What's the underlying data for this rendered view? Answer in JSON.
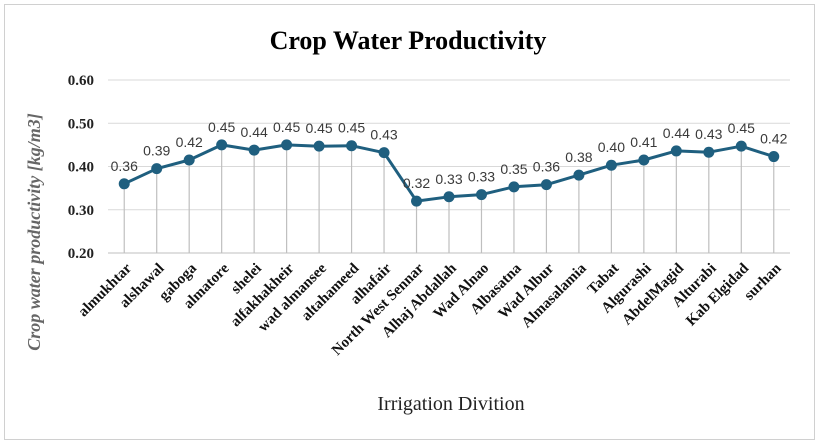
{
  "chart_data": {
    "type": "line",
    "title": "Crop Water Productivity",
    "xlabel": "Irrigation Divition",
    "ylabel": "Crop water productivity [kg/m3]",
    "ylim": [
      0.2,
      0.6
    ],
    "yticks": [
      "0.20",
      "0.30",
      "0.40",
      "0.50",
      "0.60"
    ],
    "grid": true,
    "line_color": "#1f5f7f",
    "categories": [
      "almukhtar",
      "alshawal",
      "gaboga",
      "almatore",
      "shelei",
      "alfakhakheir",
      "wad almansee",
      "altahameed",
      "alhafair",
      "North West Sennar",
      "Alhaj Abdallah",
      "Wad Alnao",
      "Albasatna",
      "Wad Albur",
      "Almasalamia",
      "Tabat",
      "Algurashi",
      "AbdelMagid",
      "Alturabi",
      "Kab Elgidad",
      "surhan"
    ],
    "values": [
      0.36,
      0.395,
      0.415,
      0.45,
      0.438,
      0.45,
      0.447,
      0.448,
      0.432,
      0.32,
      0.33,
      0.335,
      0.353,
      0.358,
      0.38,
      0.403,
      0.415,
      0.436,
      0.433,
      0.447,
      0.423
    ],
    "labels": [
      "0.36",
      "0.39",
      "0.42",
      "0.45",
      "0.44",
      "0.45",
      "0.45",
      "0.45",
      "0.43",
      "0.32",
      "0.33",
      "0.33",
      "0.35",
      "0.36",
      "0.38",
      "0.40",
      "0.41",
      "0.44",
      "0.43",
      "0.45",
      "0.42"
    ]
  }
}
